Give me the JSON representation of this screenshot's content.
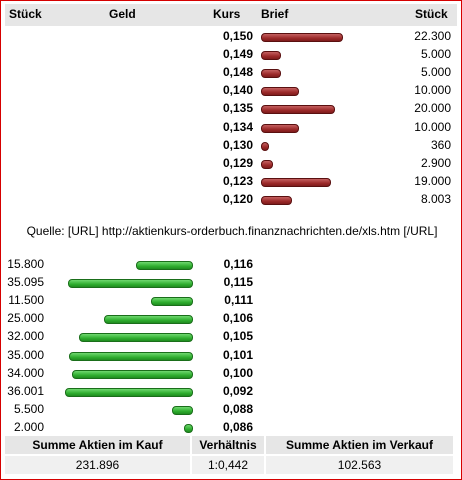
{
  "header": {
    "stueck_left": "Stück",
    "geld": "Geld",
    "kurs": "Kurs",
    "brief": "Brief",
    "stueck_right": "Stück"
  },
  "colors": {
    "sell_bar": "#9c2a2a",
    "buy_bar": "#2fae2f",
    "frame": "#d60000"
  },
  "sell_orders": [
    {
      "kurs": "0,150",
      "stueck": "22.300",
      "amount": 22300
    },
    {
      "kurs": "0,149",
      "stueck": "5.000",
      "amount": 5000
    },
    {
      "kurs": "0,148",
      "stueck": "5.000",
      "amount": 5000
    },
    {
      "kurs": "0,140",
      "stueck": "10.000",
      "amount": 10000
    },
    {
      "kurs": "0,135",
      "stueck": "20.000",
      "amount": 20000
    },
    {
      "kurs": "0,134",
      "stueck": "10.000",
      "amount": 10000
    },
    {
      "kurs": "0,130",
      "stueck": "360",
      "amount": 360
    },
    {
      "kurs": "0,129",
      "stueck": "2.900",
      "amount": 2900
    },
    {
      "kurs": "0,123",
      "stueck": "19.000",
      "amount": 19000
    },
    {
      "kurs": "0,120",
      "stueck": "8.003",
      "amount": 8003
    }
  ],
  "source_text": "Quelle: [URL] http://aktienkurs-orderbuch.finanznachrichten.de/xls.htm [/URL]",
  "buy_orders": [
    {
      "kurs": "0,116",
      "stueck": "15.800",
      "amount": 15800
    },
    {
      "kurs": "0,115",
      "stueck": "35.095",
      "amount": 35095
    },
    {
      "kurs": "0,111",
      "stueck": "11.500",
      "amount": 11500
    },
    {
      "kurs": "0,106",
      "stueck": "25.000",
      "amount": 25000
    },
    {
      "kurs": "0,105",
      "stueck": "32.000",
      "amount": 32000
    },
    {
      "kurs": "0,101",
      "stueck": "35.000",
      "amount": 35000
    },
    {
      "kurs": "0,100",
      "stueck": "34.000",
      "amount": 34000
    },
    {
      "kurs": "0,092",
      "stueck": "36.001",
      "amount": 36001
    },
    {
      "kurs": "0,088",
      "stueck": "5.500",
      "amount": 5500
    },
    {
      "kurs": "0,086",
      "stueck": "2.000",
      "amount": 2000
    }
  ],
  "footer": {
    "kauf_label": "Summe Aktien im Kauf",
    "ratio_label": "Verhältnis",
    "verkauf_label": "Summe Aktien im Verkauf",
    "kauf_value": "231.896",
    "ratio_value": "1:0,442",
    "verkauf_value": "102.563"
  }
}
